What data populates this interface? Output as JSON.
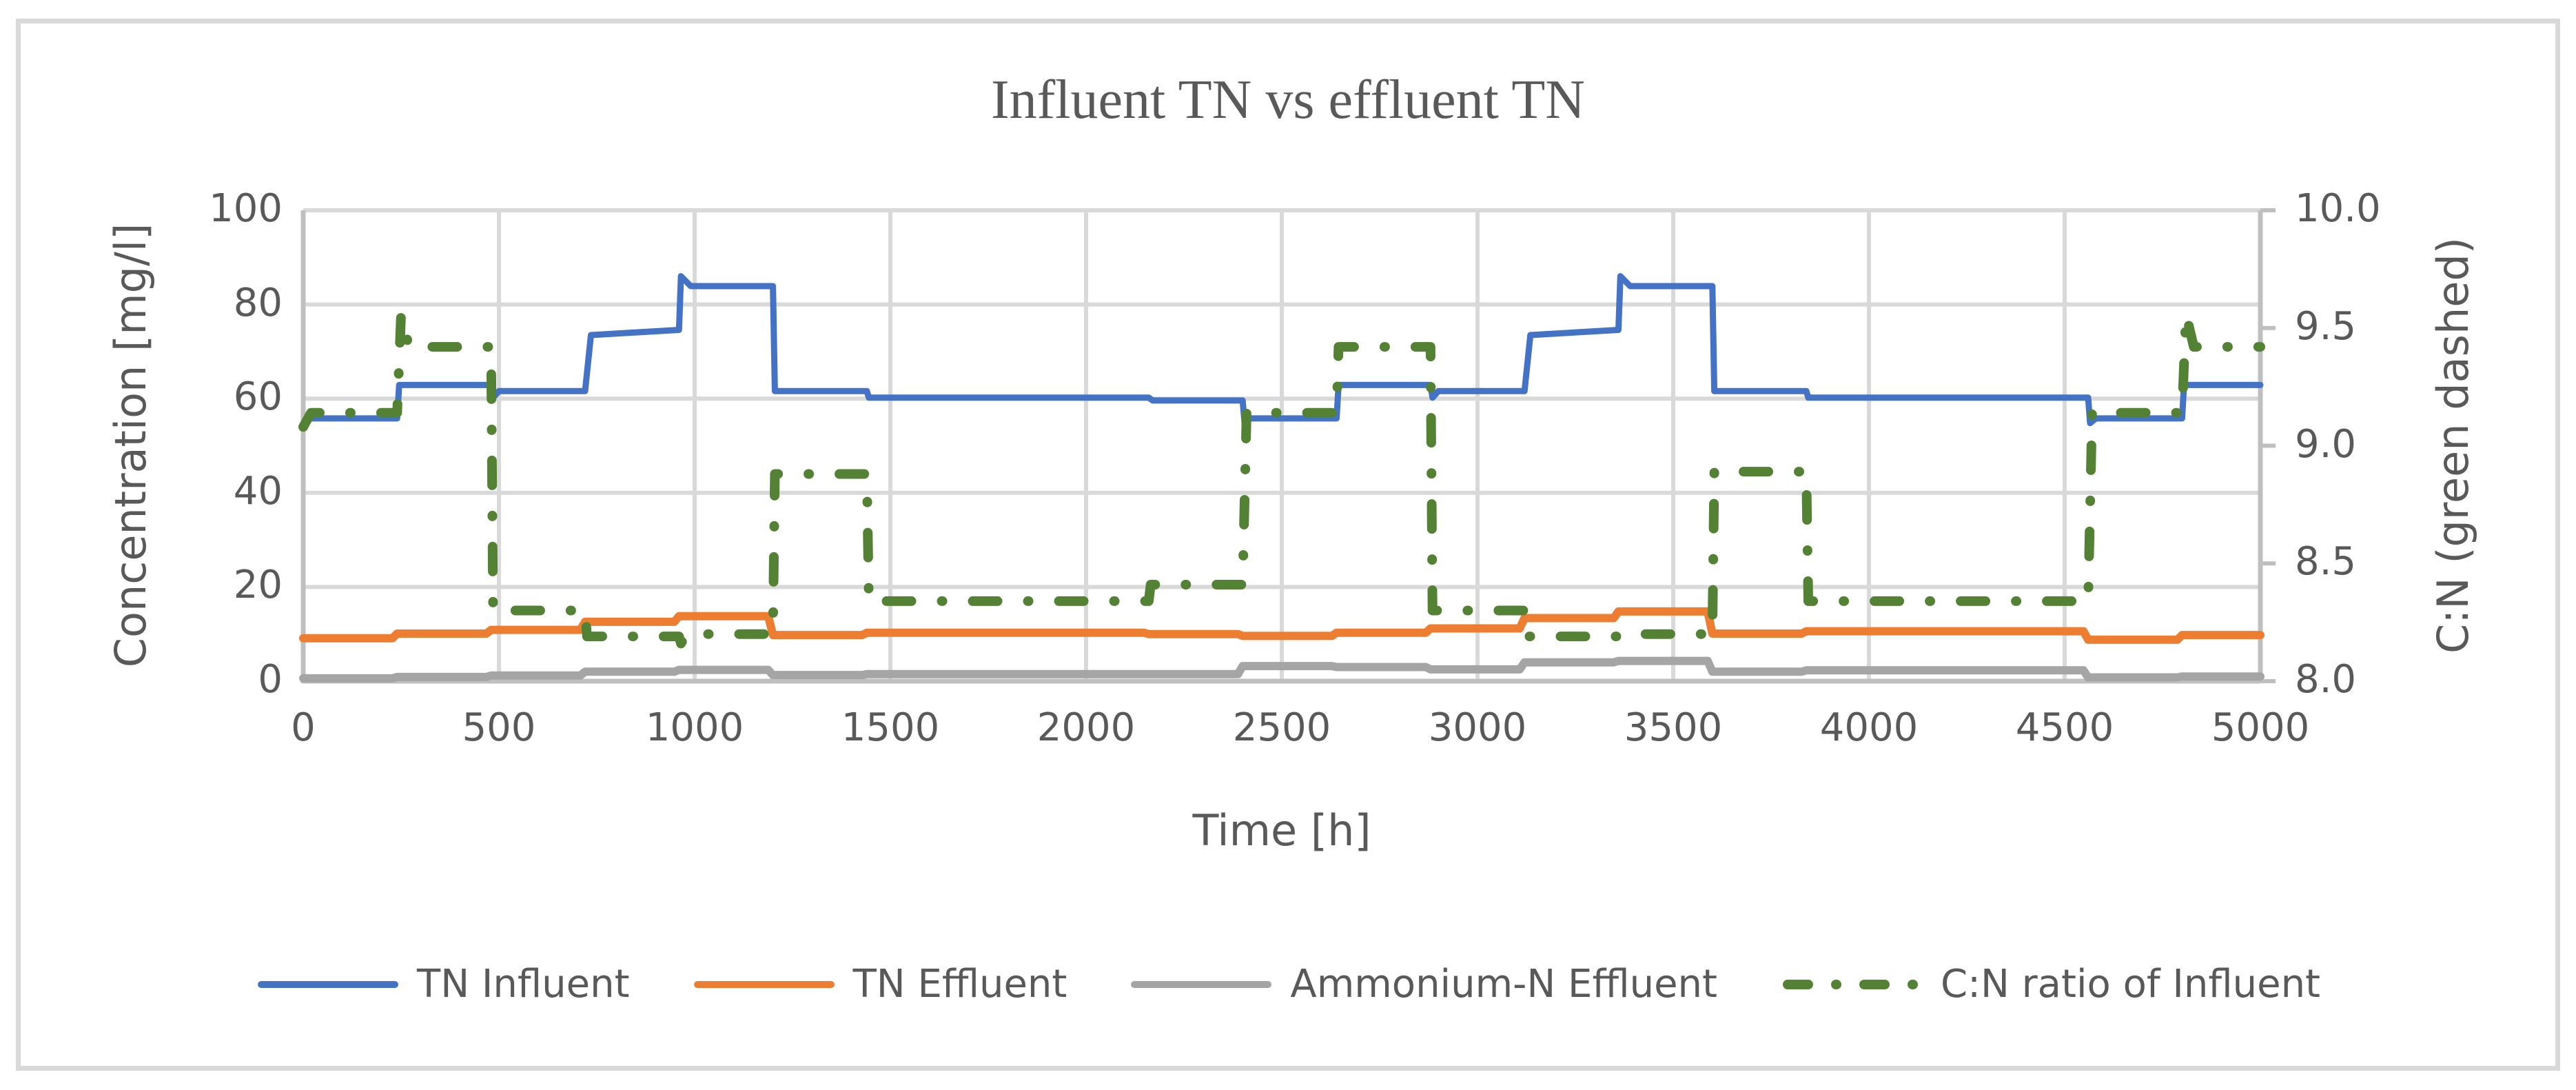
{
  "chart_data": {
    "type": "line",
    "title": "Influent TN vs effluent TN",
    "xlabel": "Time [h]",
    "ylabel": "Concentration [mg/l]",
    "ylabel_right": "C:N (green dashed)",
    "xlim": [
      0,
      5000
    ],
    "ylim": [
      0,
      100
    ],
    "ylim_right": [
      8.0,
      10.0
    ],
    "x_ticks": [
      "0",
      "500",
      "1000",
      "1500",
      "2000",
      "2500",
      "3000",
      "3500",
      "4000",
      "4500",
      "5000"
    ],
    "y_ticks": [
      "0",
      "20",
      "40",
      "60",
      "80",
      "100"
    ],
    "y_ticks_right": [
      "8.0",
      "8.5",
      "9.0",
      "9.5",
      "10.0"
    ],
    "grid": true,
    "legend_position": "bottom",
    "series": [
      {
        "name": "TN Influent",
        "axis": "left",
        "color": "#4472c4",
        "style": "solid",
        "x": [
          0,
          15,
          240,
          245,
          480,
          485,
          500,
          720,
          735,
          960,
          965,
          990,
          1200,
          1205,
          1440,
          1445,
          2160,
          2170,
          2400,
          2405,
          2420,
          2640,
          2645,
          2880,
          2885,
          2900,
          3120,
          3135,
          3360,
          3365,
          3390,
          3600,
          3605,
          3840,
          3845,
          4560,
          4565,
          4580,
          4800,
          4805,
          5000
        ],
        "values": [
          54.5,
          55.8,
          55.8,
          62.9,
          62.9,
          60.2,
          61.6,
          61.6,
          73.5,
          74.6,
          86.0,
          83.9,
          83.9,
          61.6,
          61.6,
          60.2,
          60.2,
          59.6,
          59.6,
          54.8,
          55.8,
          55.8,
          62.9,
          62.9,
          60.2,
          61.6,
          61.6,
          73.5,
          74.6,
          86.0,
          83.9,
          83.9,
          61.6,
          61.6,
          60.2,
          60.2,
          54.8,
          55.8,
          55.8,
          62.9,
          62.9
        ]
      },
      {
        "name": "TN Effluent",
        "axis": "left",
        "color": "#ed7d31",
        "style": "solid",
        "x": [
          0,
          240,
          480,
          720,
          960,
          1200,
          1440,
          2160,
          2400,
          2640,
          2880,
          3120,
          3360,
          3600,
          3840,
          4560,
          4800,
          5000
        ],
        "values": [
          9.1,
          10.1,
          10.9,
          12.6,
          13.8,
          9.8,
          10.3,
          10.0,
          9.6,
          10.3,
          11.2,
          13.4,
          14.8,
          10.1,
          10.6,
          8.8,
          9.8,
          9.8
        ]
      },
      {
        "name": "Ammonium-N Effluent",
        "axis": "left",
        "color": "#a5a5a5",
        "style": "solid",
        "x": [
          0,
          240,
          480,
          720,
          960,
          1200,
          1440,
          2160,
          2400,
          2640,
          2880,
          3120,
          3360,
          3600,
          3840,
          4560,
          4800,
          5000
        ],
        "values": [
          0.6,
          0.9,
          1.2,
          2.0,
          2.4,
          1.3,
          1.5,
          1.5,
          3.2,
          3.0,
          2.5,
          4.0,
          4.3,
          2.0,
          2.3,
          0.8,
          1.0,
          1.0
        ]
      },
      {
        "name": "C:N ratio of Influent",
        "axis": "right",
        "color": "#548235",
        "style": "dash-dot",
        "x": [
          0,
          20,
          240,
          250,
          270,
          480,
          485,
          720,
          725,
          960,
          965,
          980,
          1200,
          1205,
          1440,
          1445,
          2160,
          2165,
          2400,
          2410,
          2640,
          2645,
          2880,
          2885,
          3120,
          3125,
          3360,
          3365,
          3600,
          3605,
          3840,
          3845,
          4560,
          4570,
          4800,
          4810,
          4830,
          5000
        ],
        "values": [
          9.08,
          9.14,
          9.14,
          9.56,
          9.42,
          9.42,
          8.3,
          8.3,
          8.19,
          8.19,
          8.16,
          8.2,
          8.2,
          8.88,
          8.88,
          8.34,
          8.34,
          8.41,
          8.41,
          9.14,
          9.14,
          9.42,
          9.42,
          8.3,
          8.3,
          8.19,
          8.19,
          8.2,
          8.2,
          8.89,
          8.89,
          8.34,
          8.34,
          9.14,
          9.14,
          9.56,
          9.42,
          9.42
        ]
      }
    ]
  },
  "legend": {
    "items": [
      {
        "label": "TN Influent",
        "color": "#4472c4",
        "style": "solid"
      },
      {
        "label": "TN Effluent",
        "color": "#ed7d31",
        "style": "solid"
      },
      {
        "label": "Ammonium-N Effluent",
        "color": "#a5a5a5",
        "style": "solid"
      },
      {
        "label": "C:N ratio of Influent",
        "color": "#548235",
        "style": "dash-dot"
      }
    ]
  },
  "colors": {
    "text": "#595959",
    "grid": "#d9d9d9",
    "axis": "#bfbfbf",
    "border": "#d9d9d9"
  }
}
